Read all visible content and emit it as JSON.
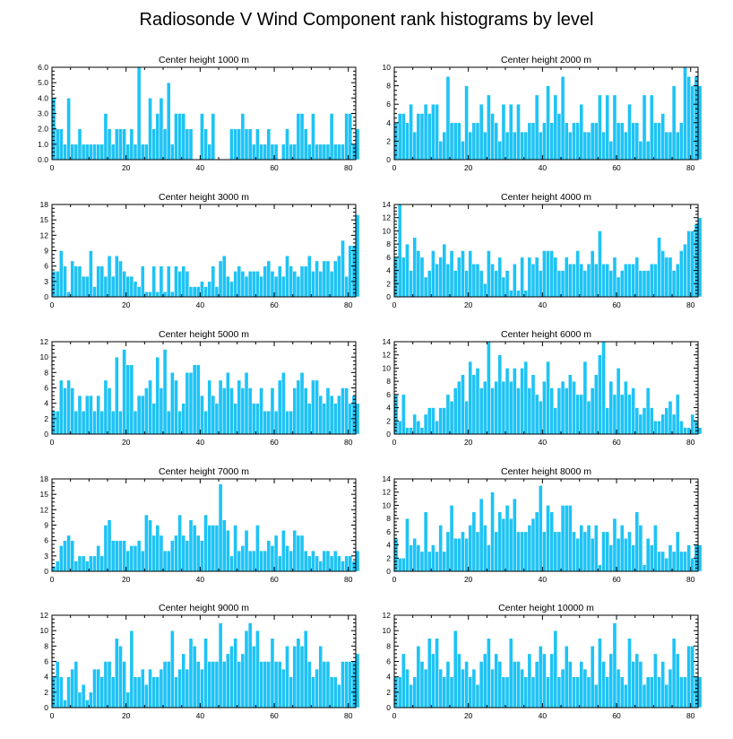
{
  "figure": {
    "title": "Radiosonde V Wind Component rank histograms by level"
  },
  "style": {
    "bar_color": "#1ec3f5",
    "bar_edge_color": "#ffffff",
    "axis_color": "#000000"
  },
  "chart_data": [
    {
      "type": "bar",
      "title": "Center height 1000 m",
      "xlim": [
        0,
        82
      ],
      "xticks": [
        0,
        20,
        40,
        60,
        80
      ],
      "ylim": [
        0,
        6
      ],
      "yticks": [
        0,
        1,
        2,
        3,
        4,
        5,
        6
      ],
      "ytick_labels": [
        "0.0",
        "1.0",
        "2.0",
        "3.0",
        "4.0",
        "5.0",
        "6.0"
      ],
      "values": [
        4,
        2,
        2,
        1,
        4,
        1,
        1,
        2,
        1,
        1,
        1,
        1,
        1,
        1,
        3,
        2,
        1,
        2,
        2,
        2,
        1,
        2,
        1,
        6,
        1,
        1,
        4,
        2,
        3,
        4,
        2,
        5,
        1,
        3,
        3,
        3,
        2,
        2,
        0,
        0,
        3,
        2,
        1,
        3,
        0,
        0,
        0,
        0,
        2,
        2,
        2,
        3,
        2,
        2,
        1,
        2,
        1,
        1,
        2,
        1,
        1,
        0,
        1,
        2,
        1,
        1,
        3,
        3,
        2,
        1,
        3,
        1,
        1,
        1,
        1,
        3,
        1,
        1,
        1,
        3,
        3,
        1,
        2
      ]
    },
    {
      "type": "bar",
      "title": "Center height 2000 m",
      "xlim": [
        0,
        82
      ],
      "xticks": [
        0,
        20,
        40,
        60,
        80
      ],
      "ylim": [
        0,
        10
      ],
      "yticks": [
        0,
        2,
        4,
        6,
        8,
        10
      ],
      "ytick_labels": [
        "0",
        "2",
        "4",
        "6",
        "8",
        "10"
      ],
      "values": [
        4,
        5,
        5,
        4,
        6,
        3,
        5,
        5,
        6,
        5,
        6,
        6,
        2,
        3,
        9,
        4,
        4,
        4,
        2,
        8,
        3,
        4,
        4,
        6,
        3,
        7,
        5,
        4,
        2,
        6,
        3,
        6,
        3,
        6,
        3,
        3,
        4,
        4,
        7,
        3,
        4,
        8,
        4,
        7,
        5,
        9,
        4,
        3,
        4,
        4,
        6,
        3,
        3,
        4,
        4,
        7,
        3,
        7,
        2,
        7,
        4,
        4,
        3,
        6,
        4,
        4,
        2,
        7,
        2,
        7,
        4,
        4,
        5,
        3,
        3,
        8,
        3,
        4,
        10,
        9,
        8,
        9,
        8
      ]
    },
    {
      "type": "bar",
      "title": "Center height 3000 m",
      "xlim": [
        0,
        82
      ],
      "xticks": [
        0,
        20,
        40,
        60,
        80
      ],
      "ylim": [
        0,
        18
      ],
      "yticks": [
        0,
        3,
        6,
        9,
        12,
        15,
        18
      ],
      "ytick_labels": [
        "0",
        "3",
        "6",
        "9",
        "12",
        "15",
        "18"
      ],
      "values": [
        5,
        5,
        9,
        6,
        1,
        7,
        6,
        6,
        4,
        4,
        9,
        2,
        6,
        6,
        4,
        8,
        4,
        8,
        7,
        5,
        4,
        4,
        3,
        2,
        6,
        1,
        1,
        6,
        1,
        6,
        1,
        6,
        1,
        6,
        5,
        6,
        5,
        2,
        2,
        2,
        3,
        2,
        3,
        6,
        2,
        7,
        8,
        4,
        3,
        5,
        6,
        5,
        4,
        5,
        5,
        5,
        4,
        6,
        7,
        5,
        4,
        6,
        4,
        8,
        6,
        5,
        4,
        6,
        6,
        8,
        5,
        7,
        5,
        7,
        7,
        5,
        7,
        8,
        11,
        4,
        10,
        10,
        16
      ]
    },
    {
      "type": "bar",
      "title": "Center height 4000 m",
      "xlim": [
        0,
        82
      ],
      "xticks": [
        0,
        20,
        40,
        60,
        80
      ],
      "ylim": [
        0,
        14
      ],
      "yticks": [
        0,
        2,
        4,
        6,
        8,
        10,
        12,
        14
      ],
      "ytick_labels": [
        "0",
        "2",
        "4",
        "6",
        "8",
        "10",
        "12",
        "14"
      ],
      "values": [
        6,
        14,
        6,
        8,
        4,
        9,
        7,
        6,
        3,
        4,
        7,
        5,
        6,
        8,
        5,
        7,
        4,
        6,
        7,
        4,
        7,
        5,
        5,
        4,
        2,
        7,
        5,
        4,
        6,
        3,
        4,
        1,
        5,
        1,
        6,
        1,
        6,
        5,
        6,
        4,
        7,
        7,
        7,
        6,
        4,
        4,
        6,
        5,
        5,
        7,
        5,
        4,
        5,
        7,
        5,
        10,
        5,
        5,
        4,
        6,
        3,
        4,
        5,
        5,
        5,
        6,
        4,
        4,
        4,
        5,
        5,
        9,
        7,
        6,
        6,
        4,
        5,
        7,
        8,
        10,
        10,
        11,
        12
      ]
    },
    {
      "type": "bar",
      "title": "Center height 5000 m",
      "xlim": [
        0,
        82
      ],
      "xticks": [
        0,
        20,
        40,
        60,
        80
      ],
      "ylim": [
        0,
        12
      ],
      "yticks": [
        0,
        2,
        4,
        6,
        8,
        10,
        12
      ],
      "ytick_labels": [
        "0",
        "2",
        "4",
        "6",
        "8",
        "10",
        "12"
      ],
      "values": [
        3,
        3,
        7,
        6,
        7,
        6,
        3,
        5,
        3,
        5,
        5,
        3,
        5,
        3,
        7,
        6,
        3,
        10,
        3,
        11,
        9,
        9,
        3,
        5,
        5,
        6,
        7,
        4,
        10,
        6,
        11,
        3,
        8,
        7,
        3,
        4,
        8,
        8,
        9,
        9,
        5,
        3,
        7,
        5,
        4,
        7,
        6,
        8,
        6,
        4,
        7,
        6,
        8,
        6,
        4,
        4,
        6,
        3,
        3,
        6,
        3,
        7,
        8,
        3,
        3,
        6,
        7,
        8,
        6,
        4,
        7,
        7,
        5,
        4,
        6,
        5,
        4,
        5,
        6,
        6,
        4,
        5,
        4
      ]
    },
    {
      "type": "bar",
      "title": "Center height 6000 m",
      "xlim": [
        0,
        82
      ],
      "xticks": [
        0,
        20,
        40,
        60,
        80
      ],
      "ylim": [
        0,
        14
      ],
      "yticks": [
        0,
        2,
        4,
        6,
        8,
        10,
        12,
        14
      ],
      "ytick_labels": [
        "0",
        "2",
        "4",
        "6",
        "8",
        "10",
        "12",
        "14"
      ],
      "values": [
        6,
        2,
        6,
        1,
        1,
        3,
        2,
        1,
        3,
        4,
        4,
        2,
        4,
        4,
        6,
        5,
        7,
        8,
        9,
        5,
        11,
        9,
        10,
        7,
        8,
        14,
        7,
        8,
        12,
        8,
        10,
        8,
        10,
        7,
        10,
        11,
        7,
        9,
        6,
        5,
        8,
        11,
        7,
        4,
        7,
        8,
        7,
        9,
        8,
        6,
        6,
        11,
        5,
        7,
        9,
        12,
        14,
        4,
        8,
        6,
        10,
        6,
        8,
        6,
        7,
        4,
        3,
        4,
        7,
        4,
        2,
        2,
        3,
        4,
        5,
        3,
        6,
        2,
        1,
        1,
        3,
        2,
        1
      ]
    },
    {
      "type": "bar",
      "title": "Center height 7000 m",
      "xlim": [
        0,
        82
      ],
      "xticks": [
        0,
        20,
        40,
        60,
        80
      ],
      "ylim": [
        0,
        18
      ],
      "yticks": [
        0,
        3,
        6,
        9,
        12,
        15,
        18
      ],
      "ytick_labels": [
        "0",
        "3",
        "6",
        "9",
        "12",
        "15",
        "18"
      ],
      "values": [
        1,
        2,
        5,
        6,
        7,
        6,
        2,
        3,
        3,
        2,
        3,
        3,
        5,
        3,
        9,
        10,
        6,
        6,
        6,
        6,
        4,
        5,
        5,
        6,
        4,
        11,
        10,
        7,
        9,
        7,
        4,
        4,
        6,
        7,
        11,
        7,
        6,
        10,
        9,
        7,
        6,
        11,
        9,
        9,
        9,
        17,
        10,
        8,
        3,
        9,
        4,
        5,
        8,
        4,
        4,
        9,
        4,
        4,
        6,
        5,
        7,
        3,
        8,
        5,
        4,
        8,
        7,
        7,
        4,
        3,
        4,
        3,
        2,
        4,
        4,
        3,
        4,
        3,
        2,
        3,
        3,
        2,
        4
      ]
    },
    {
      "type": "bar",
      "title": "Center height 8000 m",
      "xlim": [
        0,
        82
      ],
      "xticks": [
        0,
        20,
        40,
        60,
        80
      ],
      "ylim": [
        0,
        14
      ],
      "yticks": [
        0,
        2,
        4,
        6,
        8,
        10,
        12,
        14
      ],
      "ytick_labels": [
        "0",
        "2",
        "4",
        "6",
        "8",
        "10",
        "12",
        "14"
      ],
      "values": [
        5,
        2,
        2,
        8,
        4,
        5,
        4,
        3,
        9,
        3,
        4,
        3,
        7,
        3,
        6,
        10,
        5,
        5,
        6,
        5,
        7,
        9,
        6,
        11,
        7,
        4,
        12,
        6,
        9,
        8,
        10,
        8,
        11,
        6,
        6,
        6,
        7,
        8,
        9,
        13,
        6,
        10,
        9,
        6,
        6,
        10,
        10,
        10,
        6,
        5,
        7,
        6,
        7,
        5,
        7,
        1,
        6,
        6,
        4,
        8,
        5,
        7,
        5,
        6,
        4,
        9,
        7,
        1,
        5,
        4,
        7,
        3,
        3,
        2,
        4,
        3,
        6,
        3,
        3,
        4,
        2,
        4,
        4
      ]
    },
    {
      "type": "bar",
      "title": "Center height 9000 m",
      "xlim": [
        0,
        82
      ],
      "xticks": [
        0,
        20,
        40,
        60,
        80
      ],
      "ylim": [
        0,
        12
      ],
      "yticks": [
        0,
        2,
        4,
        6,
        8,
        10,
        12
      ],
      "ytick_labels": [
        "0",
        "2",
        "4",
        "6",
        "8",
        "10",
        "12"
      ],
      "values": [
        4,
        6,
        4,
        1,
        4,
        5,
        6,
        2,
        3,
        1,
        2,
        5,
        5,
        4,
        6,
        6,
        4,
        9,
        8,
        6,
        2,
        10,
        4,
        4,
        5,
        3,
        5,
        4,
        4,
        5,
        6,
        6,
        10,
        4,
        5,
        7,
        5,
        9,
        8,
        6,
        5,
        9,
        6,
        6,
        6,
        11,
        6,
        7,
        8,
        9,
        6,
        7,
        10,
        11,
        8,
        10,
        6,
        6,
        6,
        9,
        6,
        6,
        5,
        8,
        4,
        8,
        9,
        8,
        10,
        6,
        4,
        5,
        8,
        6,
        6,
        4,
        4,
        3,
        6,
        6,
        6,
        6,
        7
      ]
    },
    {
      "type": "bar",
      "title": "Center height 10000 m",
      "xlim": [
        0,
        82
      ],
      "xticks": [
        0,
        20,
        40,
        60,
        80
      ],
      "ylim": [
        0,
        12
      ],
      "yticks": [
        0,
        2,
        4,
        6,
        8,
        10,
        12
      ],
      "ytick_labels": [
        "0",
        "2",
        "4",
        "6",
        "8",
        "10",
        "12"
      ],
      "values": [
        4,
        4,
        7,
        5,
        3,
        4,
        8,
        6,
        5,
        9,
        7,
        9,
        5,
        4,
        6,
        4,
        10,
        7,
        5,
        6,
        4,
        5,
        3,
        6,
        7,
        9,
        5,
        7,
        6,
        4,
        4,
        9,
        6,
        6,
        5,
        4,
        7,
        4,
        6,
        8,
        7,
        4,
        7,
        10,
        4,
        5,
        8,
        6,
        4,
        4,
        6,
        5,
        4,
        8,
        3,
        9,
        6,
        4,
        7,
        11,
        5,
        4,
        3,
        9,
        6,
        7,
        6,
        3,
        4,
        4,
        7,
        4,
        6,
        3,
        5,
        9,
        7,
        4,
        4,
        8,
        8,
        4,
        4
      ]
    }
  ]
}
